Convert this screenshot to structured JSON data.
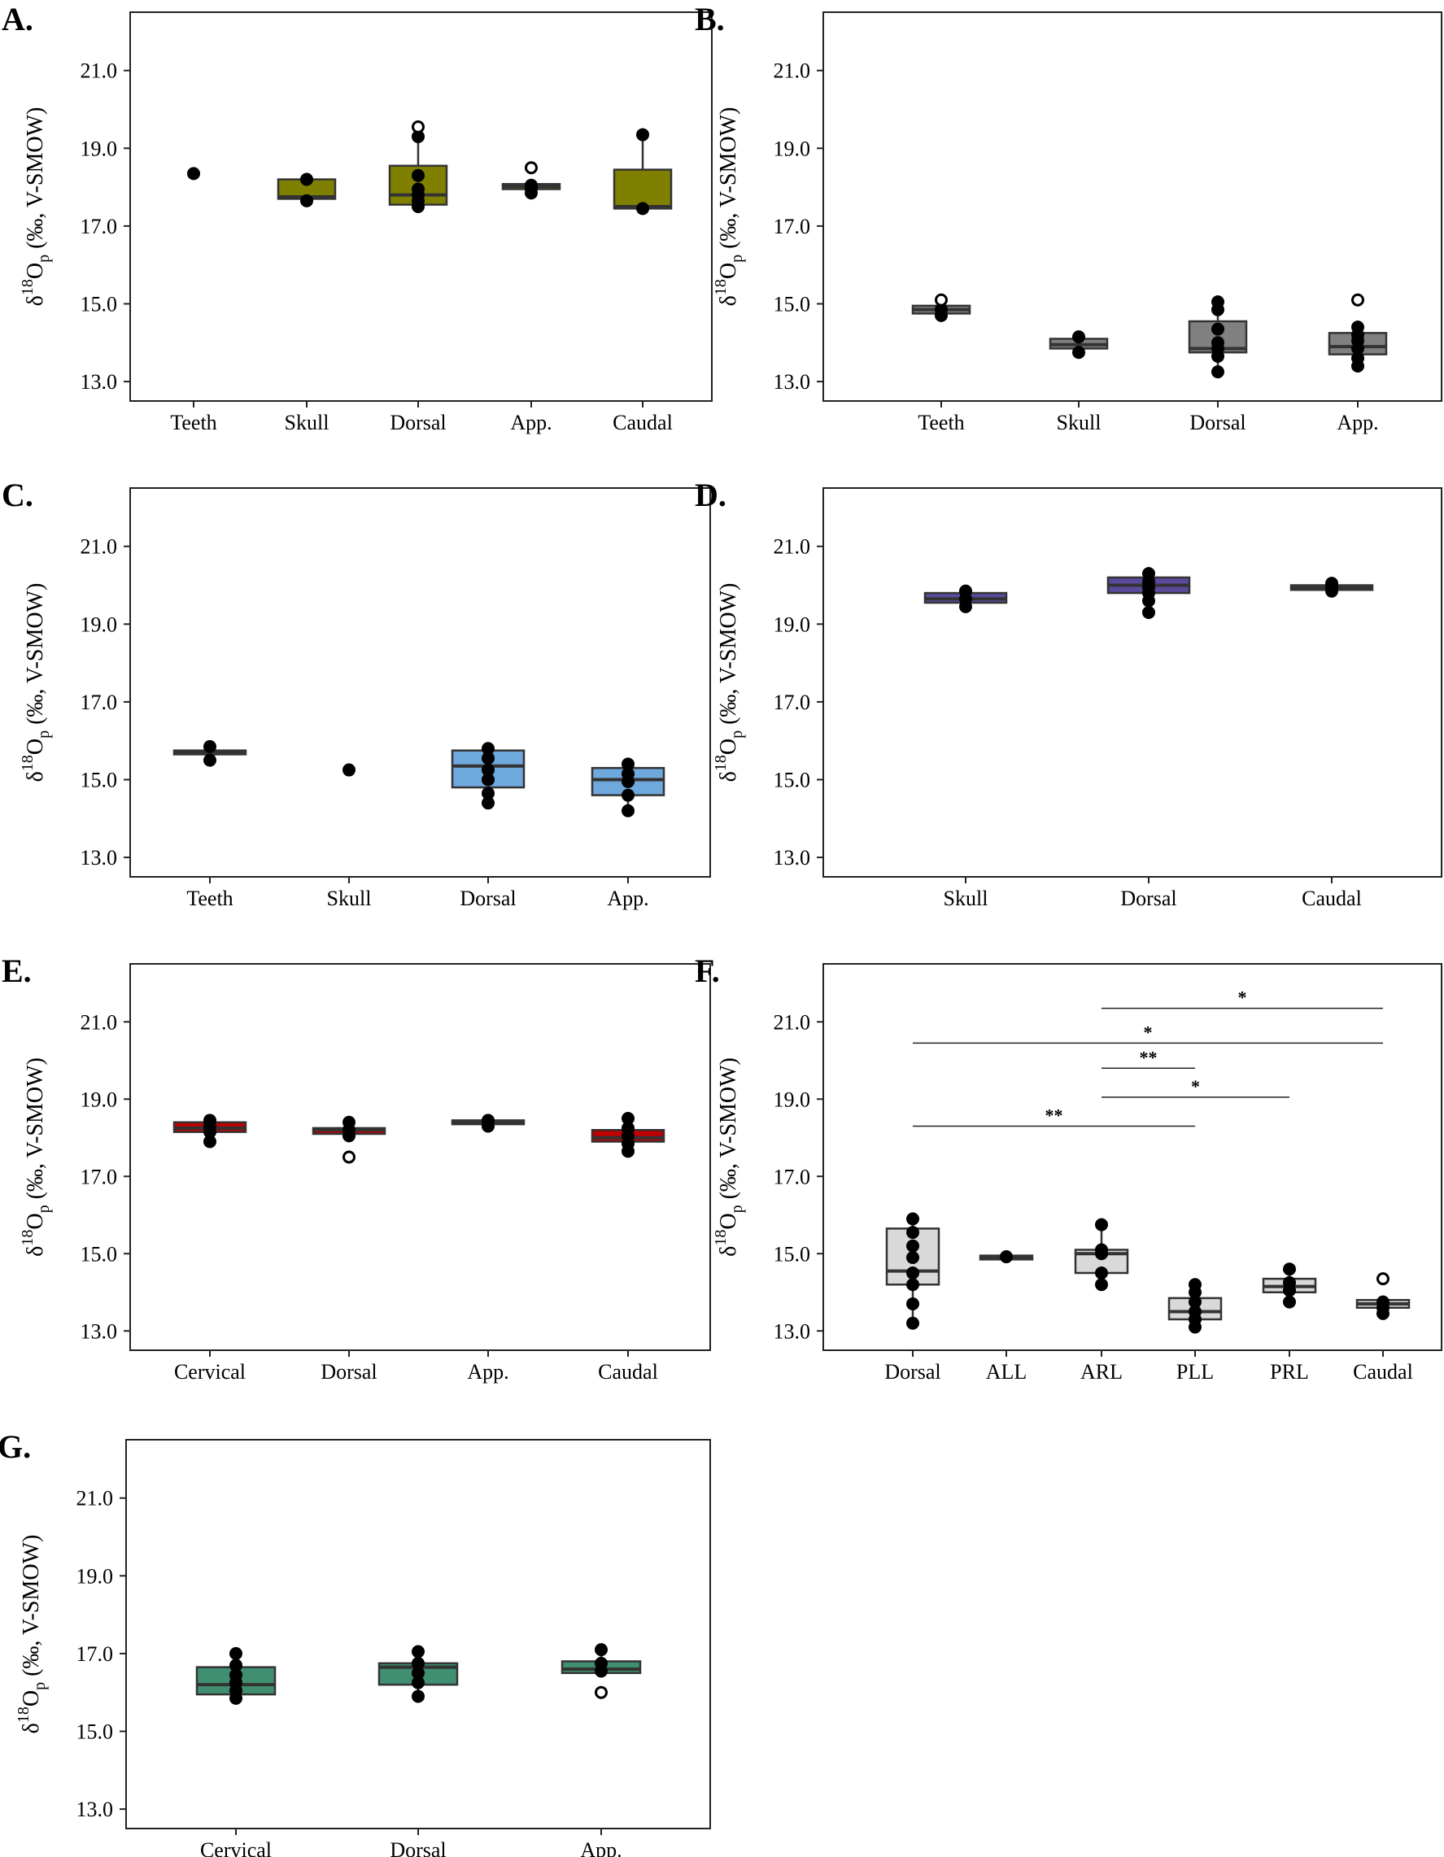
{
  "figure": {
    "y_axis_label": {
      "delta": "δ",
      "sup": "18",
      "main": "O",
      "sub": "p",
      "rest": " (‰, V-SMOW)"
    },
    "y_ticks": [
      "13.0",
      "15.0",
      "17.0",
      "19.0",
      "21.0"
    ]
  },
  "chart_data": [
    {
      "panel": "A.",
      "type": "box",
      "ylim": [
        12.5,
        22.5
      ],
      "color": "#808000",
      "categories": [
        "Teeth",
        "Skull",
        "Dorsal",
        "App.",
        "Caudal"
      ],
      "boxes": [
        {
          "q1": null,
          "median": null,
          "q3": null,
          "whisker_low": null,
          "whisker_high": null,
          "points": [
            18.35
          ],
          "outliers": []
        },
        {
          "q1": 17.7,
          "median": 17.75,
          "q3": 18.2,
          "whisker_low": 17.65,
          "whisker_high": 18.2,
          "points": [
            17.65,
            18.2
          ],
          "outliers": []
        },
        {
          "q1": 17.55,
          "median": 17.8,
          "q3": 18.55,
          "whisker_low": 17.5,
          "whisker_high": 19.35,
          "points": [
            17.5,
            17.65,
            17.8,
            17.95,
            18.3,
            19.3
          ],
          "outliers": [
            19.55
          ]
        },
        {
          "q1": 17.95,
          "median": 18.02,
          "q3": 18.08,
          "whisker_low": 17.85,
          "whisker_high": 18.15,
          "points": [
            17.85,
            17.95,
            18.0,
            18.05
          ],
          "outliers": [
            18.5
          ]
        },
        {
          "q1": 17.45,
          "median": 17.5,
          "q3": 18.45,
          "whisker_low": 17.45,
          "whisker_high": 19.35,
          "points": [
            17.45,
            19.35
          ],
          "outliers": []
        }
      ]
    },
    {
      "panel": "B.",
      "type": "box",
      "ylim": [
        12.5,
        22.5
      ],
      "color": "#808080",
      "categories": [
        "Teeth",
        "Skull",
        "Dorsal",
        "App."
      ],
      "boxes": [
        {
          "q1": 14.75,
          "median": 14.85,
          "q3": 14.95,
          "whisker_low": 14.7,
          "whisker_high": 14.95,
          "points": [
            14.7,
            14.85
          ],
          "outliers": [
            15.1
          ]
        },
        {
          "q1": 13.85,
          "median": 13.95,
          "q3": 14.1,
          "whisker_low": 13.75,
          "whisker_high": 14.2,
          "points": [
            13.75,
            14.15
          ],
          "outliers": []
        },
        {
          "q1": 13.75,
          "median": 13.85,
          "q3": 14.55,
          "whisker_low": 13.25,
          "whisker_high": 15.1,
          "points": [
            13.25,
            13.65,
            13.85,
            14.0,
            14.35,
            14.85,
            15.05
          ],
          "outliers": []
        },
        {
          "q1": 13.7,
          "median": 13.9,
          "q3": 14.25,
          "whisker_low": 13.4,
          "whisker_high": 14.4,
          "points": [
            13.4,
            13.6,
            13.85,
            14.05,
            14.2,
            14.4
          ],
          "outliers": [
            15.1
          ]
        }
      ]
    },
    {
      "panel": "C.",
      "type": "box",
      "ylim": [
        12.5,
        22.5
      ],
      "color": "#6fa8dc",
      "categories": [
        "Teeth",
        "Skull",
        "Dorsal",
        "App."
      ],
      "boxes": [
        {
          "q1": 15.65,
          "median": 15.7,
          "q3": 15.75,
          "whisker_low": 15.5,
          "whisker_high": 15.85,
          "points": [
            15.5,
            15.85
          ],
          "outliers": []
        },
        {
          "q1": null,
          "median": null,
          "q3": null,
          "whisker_low": null,
          "whisker_high": null,
          "points": [
            15.25
          ],
          "outliers": []
        },
        {
          "q1": 14.8,
          "median": 15.35,
          "q3": 15.75,
          "whisker_low": 14.4,
          "whisker_high": 15.8,
          "points": [
            14.4,
            14.65,
            15.0,
            15.25,
            15.55,
            15.8
          ],
          "outliers": []
        },
        {
          "q1": 14.6,
          "median": 15.0,
          "q3": 15.3,
          "whisker_low": 14.2,
          "whisker_high": 15.4,
          "points": [
            14.2,
            14.6,
            14.95,
            15.15,
            15.4
          ],
          "outliers": []
        }
      ]
    },
    {
      "panel": "D.",
      "type": "box",
      "ylim": [
        12.5,
        22.5
      ],
      "color": "#5b4a9c",
      "categories": [
        "Skull",
        "Dorsal",
        "Caudal"
      ],
      "boxes": [
        {
          "q1": 19.55,
          "median": 19.65,
          "q3": 19.8,
          "whisker_low": 19.45,
          "whisker_high": 19.9,
          "points": [
            19.45,
            19.65,
            19.85
          ],
          "outliers": []
        },
        {
          "q1": 19.8,
          "median": 20.0,
          "q3": 20.2,
          "whisker_low": 19.3,
          "whisker_high": 20.35,
          "points": [
            19.3,
            19.6,
            19.8,
            19.95,
            20.1,
            20.3
          ],
          "outliers": []
        },
        {
          "q1": 19.88,
          "median": 19.93,
          "q3": 20.0,
          "whisker_low": 19.85,
          "whisker_high": 20.1,
          "points": [
            19.85,
            19.95,
            20.05
          ],
          "outliers": []
        }
      ]
    },
    {
      "panel": "E.",
      "type": "box",
      "ylim": [
        12.5,
        22.5
      ],
      "color": "#c00000",
      "categories": [
        "Cervical",
        "Dorsal",
        "App.",
        "Caudal"
      ],
      "boxes": [
        {
          "q1": 18.15,
          "median": 18.25,
          "q3": 18.4,
          "whisker_low": 17.9,
          "whisker_high": 18.45,
          "points": [
            17.9,
            18.15,
            18.3,
            18.45
          ],
          "outliers": []
        },
        {
          "q1": 18.1,
          "median": 18.2,
          "q3": 18.25,
          "whisker_low": 18.05,
          "whisker_high": 18.4,
          "points": [
            18.05,
            18.2,
            18.4
          ],
          "outliers": [
            17.5
          ]
        },
        {
          "q1": 18.35,
          "median": 18.4,
          "q3": 18.45,
          "whisker_low": 18.3,
          "whisker_high": 18.5,
          "points": [
            18.3,
            18.45
          ],
          "outliers": []
        },
        {
          "q1": 17.9,
          "median": 18.0,
          "q3": 18.2,
          "whisker_low": 17.65,
          "whisker_high": 18.5,
          "points": [
            17.65,
            17.85,
            18.05,
            18.25,
            18.5
          ],
          "outliers": []
        }
      ]
    },
    {
      "panel": "F.",
      "type": "box",
      "ylim": [
        12.5,
        22.5
      ],
      "color": "#d9d9d9",
      "categories": [
        "Dorsal",
        "ALL",
        "ARL",
        "PLL",
        "PRL",
        "Caudal"
      ],
      "boxes": [
        {
          "q1": 14.2,
          "median": 14.55,
          "q3": 15.65,
          "whisker_low": 13.2,
          "whisker_high": 15.9,
          "points": [
            13.2,
            13.7,
            14.2,
            14.5,
            14.9,
            15.2,
            15.55,
            15.9
          ],
          "outliers": []
        },
        {
          "q1": 14.85,
          "median": 14.9,
          "q3": 14.95,
          "whisker_low": 14.85,
          "whisker_high": 14.95,
          "points": [
            14.92
          ],
          "outliers": []
        },
        {
          "q1": 14.5,
          "median": 15.0,
          "q3": 15.1,
          "whisker_low": 14.2,
          "whisker_high": 15.75,
          "points": [
            14.2,
            14.5,
            15.0,
            15.1,
            15.75
          ],
          "outliers": []
        },
        {
          "q1": 13.3,
          "median": 13.5,
          "q3": 13.85,
          "whisker_low": 13.1,
          "whisker_high": 14.2,
          "points": [
            13.1,
            13.3,
            13.5,
            13.75,
            14.0,
            14.2
          ],
          "outliers": []
        },
        {
          "q1": 14.0,
          "median": 14.15,
          "q3": 14.35,
          "whisker_low": 13.75,
          "whisker_high": 14.6,
          "points": [
            13.75,
            14.05,
            14.25,
            14.6
          ],
          "outliers": []
        },
        {
          "q1": 13.6,
          "median": 13.7,
          "q3": 13.8,
          "whisker_low": 13.45,
          "whisker_high": 13.85,
          "points": [
            13.45,
            13.6,
            13.75
          ],
          "outliers": [
            14.35
          ]
        }
      ],
      "significance": [
        {
          "from": "ARL",
          "to": "Caudal",
          "y": 21.35,
          "label": "*"
        },
        {
          "from": "Dorsal",
          "to": "Caudal",
          "y": 20.45,
          "label": "*"
        },
        {
          "from": "ARL",
          "to": "PLL",
          "y": 19.8,
          "label": "**"
        },
        {
          "from": "ARL",
          "to": "PRL",
          "y": 19.05,
          "label": "*"
        },
        {
          "from": "Dorsal",
          "to": "PLL",
          "y": 18.3,
          "label": "**"
        }
      ]
    },
    {
      "panel": "G.",
      "type": "box",
      "ylim": [
        12.5,
        22.5
      ],
      "color": "#3f8f70",
      "categories": [
        "Cervical",
        "Dorsal",
        "App."
      ],
      "boxes": [
        {
          "q1": 15.95,
          "median": 16.2,
          "q3": 16.65,
          "whisker_low": 15.85,
          "whisker_high": 17.0,
          "points": [
            15.85,
            16.05,
            16.25,
            16.45,
            16.7,
            17.0
          ],
          "outliers": []
        },
        {
          "q1": 16.2,
          "median": 16.65,
          "q3": 16.75,
          "whisker_low": 15.9,
          "whisker_high": 17.05,
          "points": [
            15.9,
            16.25,
            16.5,
            16.75,
            17.05
          ],
          "outliers": []
        },
        {
          "q1": 16.5,
          "median": 16.6,
          "q3": 16.8,
          "whisker_low": 16.5,
          "whisker_high": 17.15,
          "points": [
            16.55,
            16.75,
            17.1
          ],
          "outliers": [
            16.0
          ]
        }
      ]
    }
  ]
}
